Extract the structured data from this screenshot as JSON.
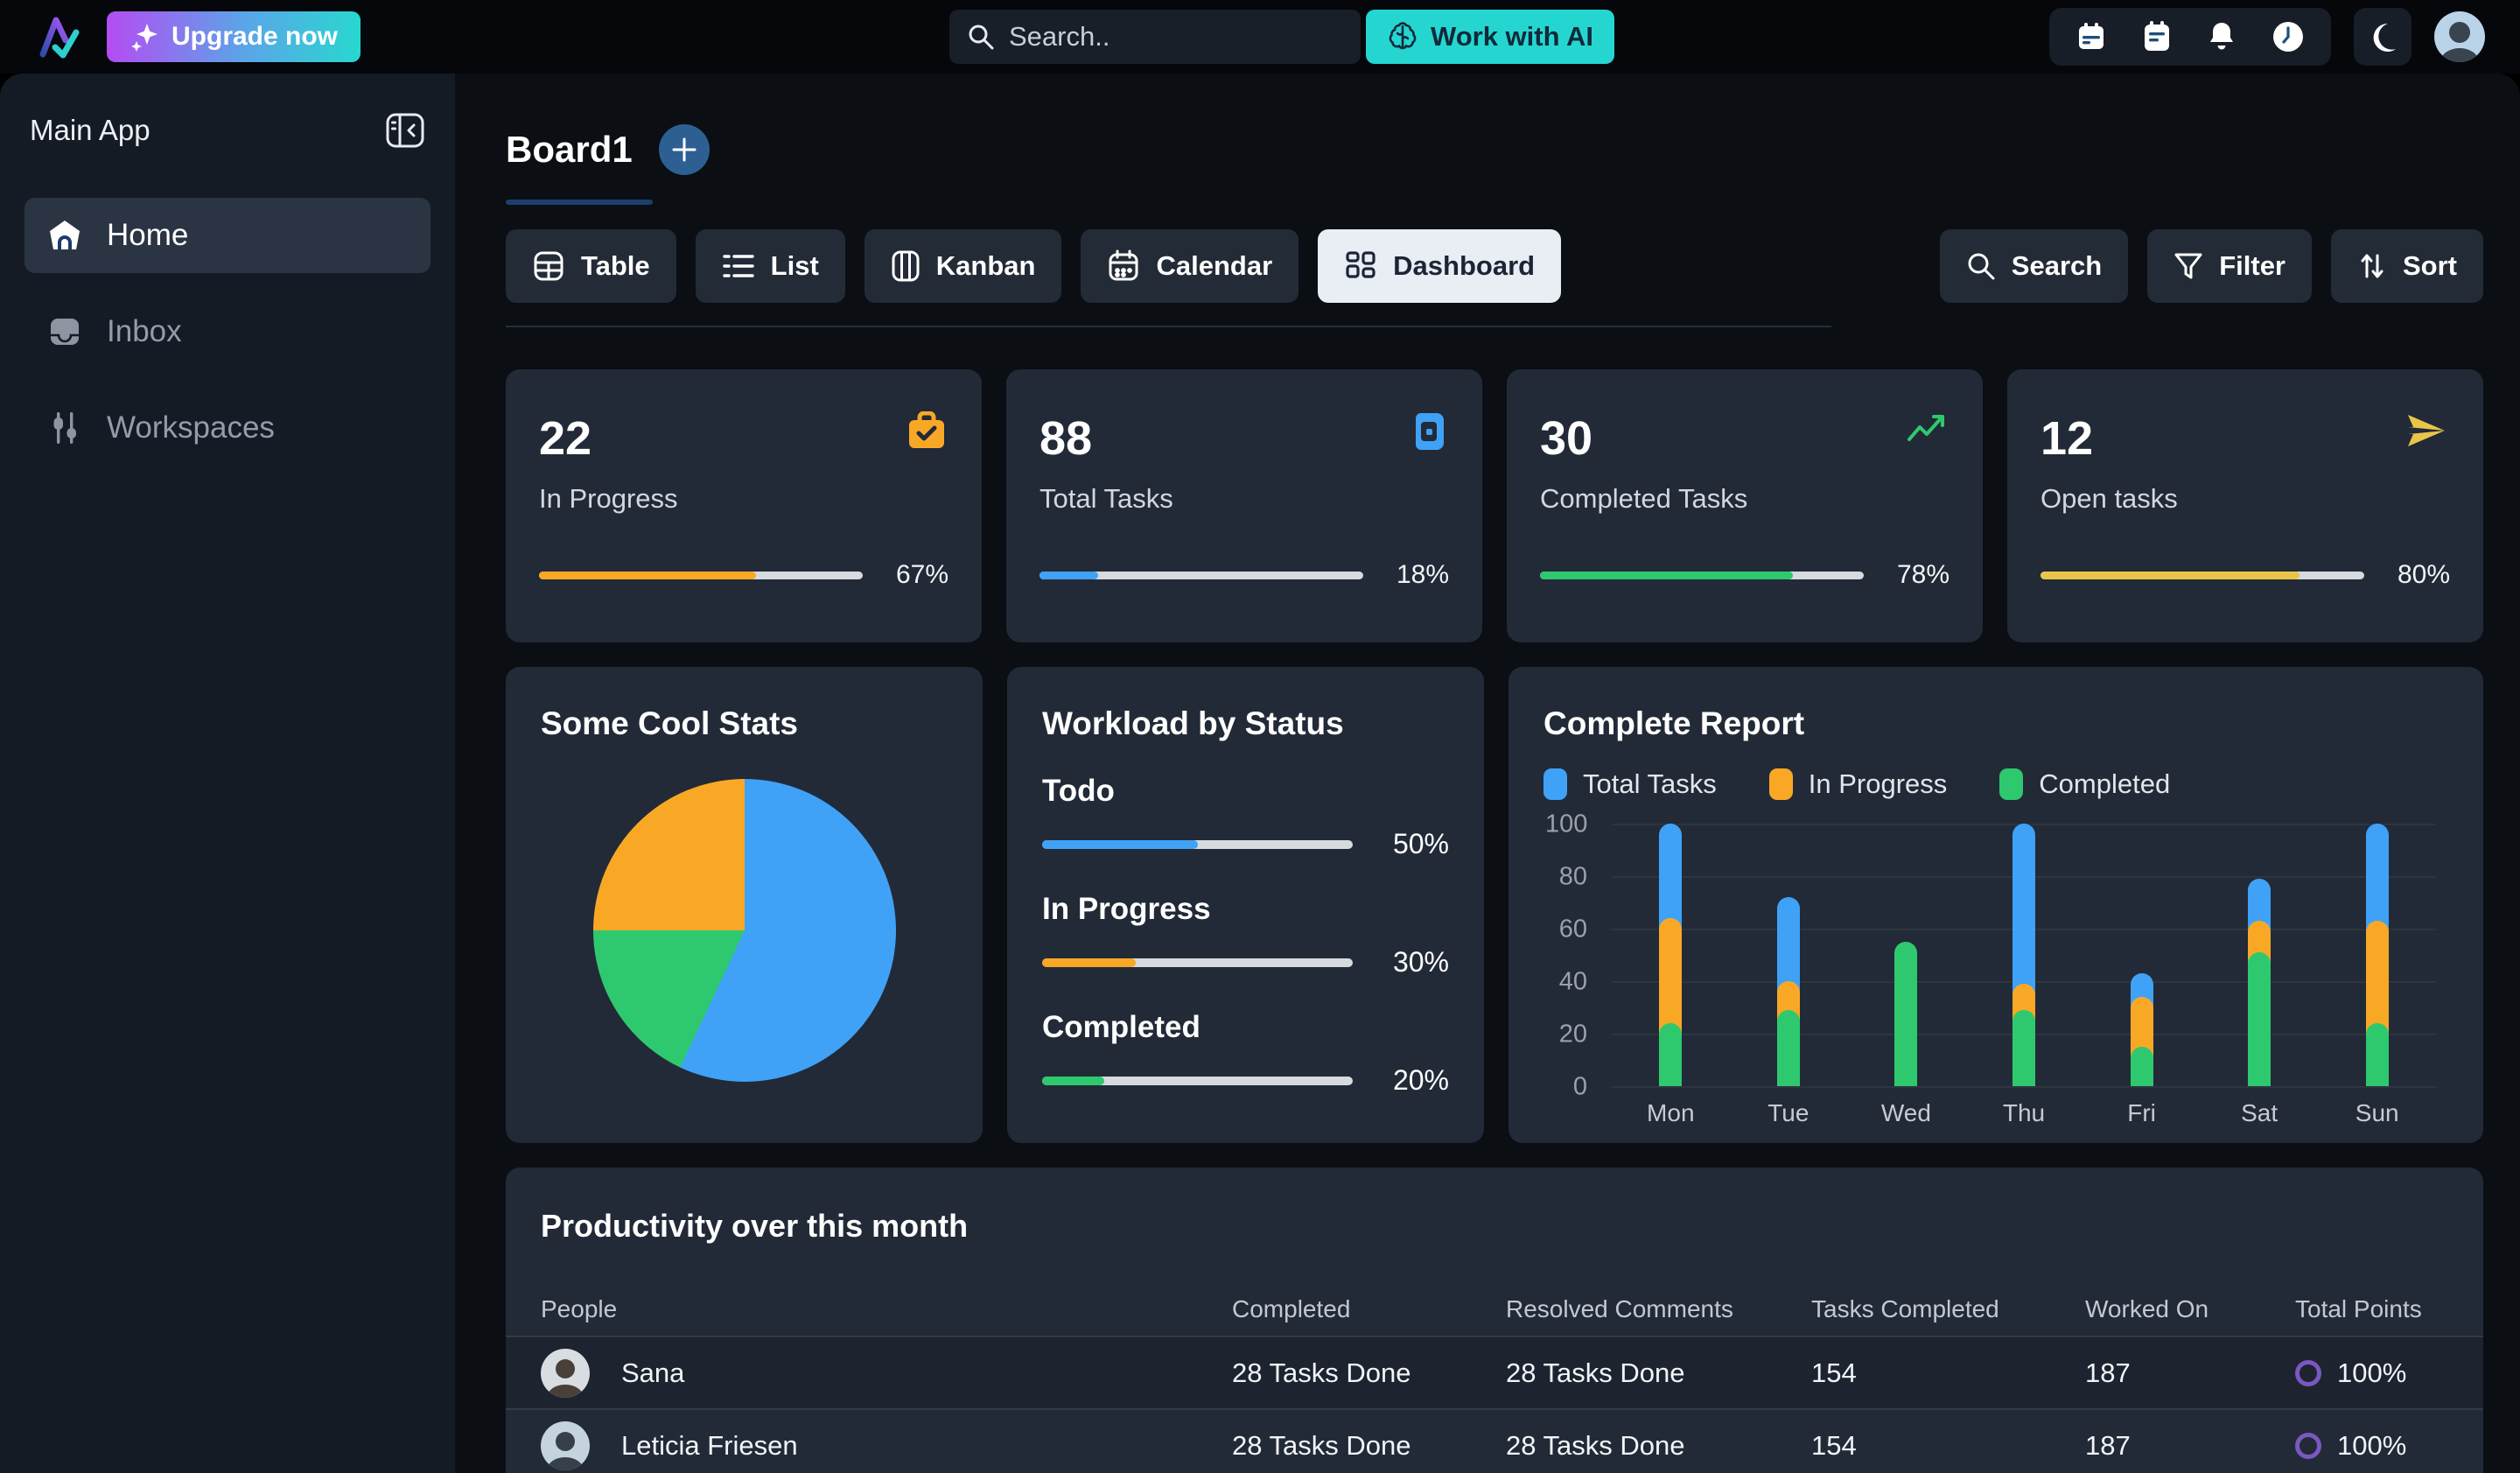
{
  "topbar": {
    "upgrade_label": "Upgrade now",
    "search_placeholder": "Search..",
    "ai_button_label": "Work with AI"
  },
  "sidebar": {
    "title": "Main App",
    "items": [
      {
        "label": "Home",
        "active": true
      },
      {
        "label": "Inbox",
        "active": false
      },
      {
        "label": "Workspaces",
        "active": false
      }
    ]
  },
  "board": {
    "title": "Board1",
    "tabs": [
      {
        "label": "Table",
        "active": false
      },
      {
        "label": "List",
        "active": false
      },
      {
        "label": "Kanban",
        "active": false
      },
      {
        "label": "Calendar",
        "active": false
      },
      {
        "label": "Dashboard",
        "active": true
      }
    ],
    "actions": {
      "search": "Search",
      "filter": "Filter",
      "sort": "Sort"
    }
  },
  "stats": {
    "cards": [
      {
        "value": "22",
        "label": "In Progress",
        "percent": 67,
        "percent_label": "67%",
        "color": "#f9a826",
        "icon": "briefcase-check-icon"
      },
      {
        "value": "88",
        "label": "Total Tasks",
        "percent": 18,
        "percent_label": "18%",
        "color": "#3fa2f7",
        "icon": "wallet-icon"
      },
      {
        "value": "30",
        "label": "Completed Tasks",
        "percent": 78,
        "percent_label": "78%",
        "color": "#2ec96e",
        "icon": "trending-up-icon"
      },
      {
        "value": "12",
        "label": "Open tasks",
        "percent": 80,
        "percent_label": "80%",
        "color": "#e9c64a",
        "icon": "send-icon"
      }
    ]
  },
  "pie_card": {
    "title": "Some Cool Stats"
  },
  "workload": {
    "title": "Workload by Status",
    "rows": [
      {
        "label": "Todo",
        "percent": 50,
        "percent_label": "50%",
        "color": "#3fa2f7"
      },
      {
        "label": "In Progress",
        "percent": 30,
        "percent_label": "30%",
        "color": "#f9a826"
      },
      {
        "label": "Completed",
        "percent": 20,
        "percent_label": "20%",
        "color": "#2ec96e"
      }
    ]
  },
  "report": {
    "title": "Complete Report"
  },
  "chart_data": [
    {
      "type": "pie",
      "title": "Some Cool Stats",
      "slices": [
        {
          "label": "Total Tasks",
          "value": 57,
          "color": "#3fa2f7"
        },
        {
          "label": "Completed",
          "value": 18,
          "color": "#2ec96e"
        },
        {
          "label": "In Progress",
          "value": 25,
          "color": "#f9a826"
        }
      ]
    },
    {
      "type": "bar",
      "title": "Complete Report",
      "categories": [
        "Mon",
        "Tue",
        "Wed",
        "Thu",
        "Fri",
        "Sat",
        "Sun"
      ],
      "series": [
        {
          "name": "Total Tasks",
          "color": "#3fa2f7",
          "values": [
            100,
            72,
            0,
            100,
            43,
            79,
            100
          ]
        },
        {
          "name": "In Progress",
          "color": "#f9a826",
          "values": [
            64,
            40,
            0,
            39,
            34,
            63,
            63
          ]
        },
        {
          "name": "Completed",
          "color": "#2ec96e",
          "values": [
            24,
            29,
            55,
            29,
            15,
            51,
            24
          ]
        }
      ],
      "ylim": [
        0,
        100
      ],
      "yticks": [
        0,
        20,
        40,
        60,
        80,
        100
      ],
      "legend_position": "top",
      "grid": true
    }
  ],
  "table": {
    "title": "Productivity over this month",
    "headers": [
      "People",
      "Completed",
      "Resolved Comments",
      "Tasks Completed",
      "Worked On",
      "Total Points"
    ],
    "rows": [
      {
        "name": "Sana",
        "completed": "28 Tasks Done",
        "resolved_comments": "28 Tasks Done",
        "tasks_completed": "154",
        "worked_on": "187",
        "total_points": "100%"
      },
      {
        "name": "Leticia Friesen",
        "completed": "28 Tasks Done",
        "resolved_comments": "28 Tasks Done",
        "tasks_completed": "154",
        "worked_on": "187",
        "total_points": "100%"
      }
    ],
    "ring_color": "#7a57c1"
  }
}
